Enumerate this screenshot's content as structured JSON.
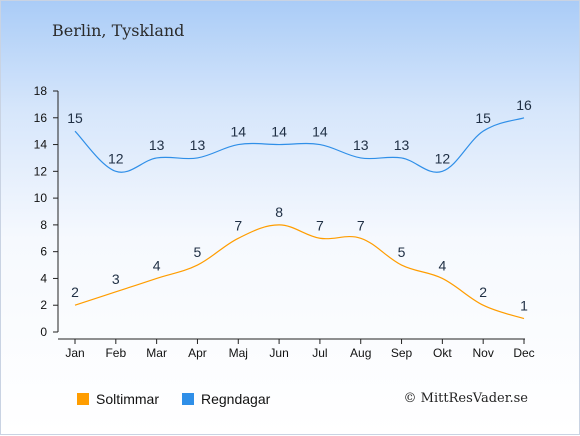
{
  "page": {
    "title": "Berlin, Tyskland",
    "credit": "© MittResVader.se"
  },
  "legend": [
    {
      "label": "Soltimmar",
      "color": "#ff9d00"
    },
    {
      "label": "Regndagar",
      "color": "#2f8fe8"
    }
  ],
  "chart_data": {
    "type": "line",
    "categories": [
      "Jan",
      "Feb",
      "Mar",
      "Apr",
      "Maj",
      "Jun",
      "Jul",
      "Aug",
      "Sep",
      "Okt",
      "Nov",
      "Dec"
    ],
    "series": [
      {
        "name": "Soltimmar",
        "color": "#ff9d00",
        "values": [
          2,
          3,
          4,
          5,
          7,
          8,
          7,
          7,
          5,
          4,
          2,
          1
        ]
      },
      {
        "name": "Regndagar",
        "color": "#2f8fe8",
        "values": [
          15,
          12,
          13,
          13,
          14,
          14,
          14,
          13,
          13,
          12,
          15,
          16
        ]
      }
    ],
    "yticks": [
      0,
      2,
      4,
      6,
      8,
      10,
      12,
      14,
      16,
      18
    ],
    "ylim": [
      0,
      18
    ],
    "grid": false,
    "legend_position": "bottom-left"
  }
}
